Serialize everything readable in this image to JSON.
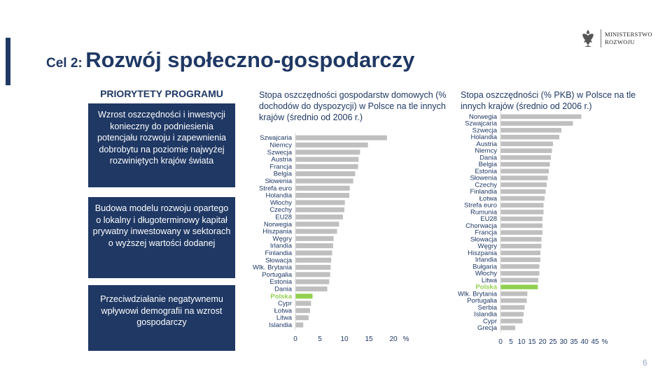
{
  "header": {
    "title_prefix": "Cel 2:",
    "title_main": "Rozwój społeczno-gospodarczy"
  },
  "logo": {
    "line1": "MINISTERSTWO",
    "line2": "ROZWOJU"
  },
  "left_panel": {
    "heading": "PRIORYTETY PROGRAMU",
    "boxes": [
      "Wzrost oszczędności i inwestycji konieczny do podniesienia potencjału rozwoju i zapewnienia dobrobytu na poziomie najwyżej rozwiniętych krajów świata",
      "Budowa modelu rozwoju opartego o lokalny i długoterminowy kapitał prywatny inwestowany w sektorach o wyższej wartości dodanej",
      "Przeciwdziałanie negatywnemu wpływowi demografii na wzrost gospodarczy"
    ]
  },
  "chart_data": [
    {
      "type": "bar",
      "orientation": "horizontal",
      "title": "Stopa oszczędności gospodarstw domowych (% dochodów do dyspozycji) w Polsce na tle innych krajów (średnio od 2006 r.)",
      "unit": "%",
      "xlim": [
        0,
        20
      ],
      "ticks": [
        0,
        5,
        10,
        15,
        20
      ],
      "highlight": "Polska",
      "categories": [
        "Szwajcaria",
        "Niemcy",
        "Szwecja",
        "Austria",
        "Francja",
        "Belgia",
        "Słowenia",
        "Strefa euro",
        "Holandia",
        "Włochy",
        "Czechy",
        "EU28",
        "Norwegia",
        "Hiszpania",
        "Węgry",
        "Irlandia",
        "Finlandia",
        "Słowacja",
        "Wlk. Brytania",
        "Portugalia",
        "Estonia",
        "Dania",
        "Polska",
        "Cypr",
        "Łotwa",
        "Litwa",
        "Islandia"
      ],
      "values": [
        18.7,
        14.8,
        13.2,
        12.9,
        12.8,
        12.2,
        11.8,
        11.1,
        11.0,
        10.1,
        10.0,
        9.7,
        8.9,
        8.5,
        7.8,
        7.7,
        7.5,
        7.3,
        7.2,
        7.1,
        6.9,
        6.5,
        3.5,
        3.2,
        3.0,
        2.7,
        1.6
      ]
    },
    {
      "type": "bar",
      "orientation": "horizontal",
      "title": "Stopa oszczędności (% PKB) w Polsce na tle innych krajów (średnio od 2006 r.)",
      "unit": "%",
      "xlim": [
        0,
        45
      ],
      "ticks": [
        0,
        5,
        10,
        15,
        20,
        25,
        30,
        35,
        40,
        45
      ],
      "highlight": "Polska",
      "categories": [
        "Norwegia",
        "Szwajcaria",
        "Szwecja",
        "Holandia",
        "Austria",
        "Niemcy",
        "Dania",
        "Belgia",
        "Estonia",
        "Słowenia",
        "Czechy",
        "Finlandia",
        "Łotwa",
        "Strefa euro",
        "Rumunia",
        "EU28",
        "Chorwacja",
        "Francja",
        "Słowacja",
        "Węgry",
        "Hiszpania",
        "Irlandia",
        "Bułgaria",
        "Włochy",
        "Litwa",
        "Polska",
        "Wlk. Brytania",
        "Portugalia",
        "Serbia",
        "Islandia",
        "Cypr",
        "Grecja"
      ],
      "values": [
        38.5,
        34.5,
        29.0,
        28.0,
        25.0,
        24.5,
        24.0,
        23.5,
        23.0,
        22.5,
        22.0,
        21.5,
        21.0,
        20.5,
        20.5,
        20.0,
        20.0,
        20.0,
        19.5,
        19.5,
        19.0,
        19.0,
        18.5,
        18.5,
        18.0,
        17.8,
        12.8,
        12.5,
        11.5,
        11.0,
        10.5,
        7.0
      ]
    }
  ],
  "colors": {
    "navy": "#1f3864",
    "bar": "#bfbfbf",
    "highlight": "#92d050"
  },
  "footer": {
    "page_number": "6"
  }
}
